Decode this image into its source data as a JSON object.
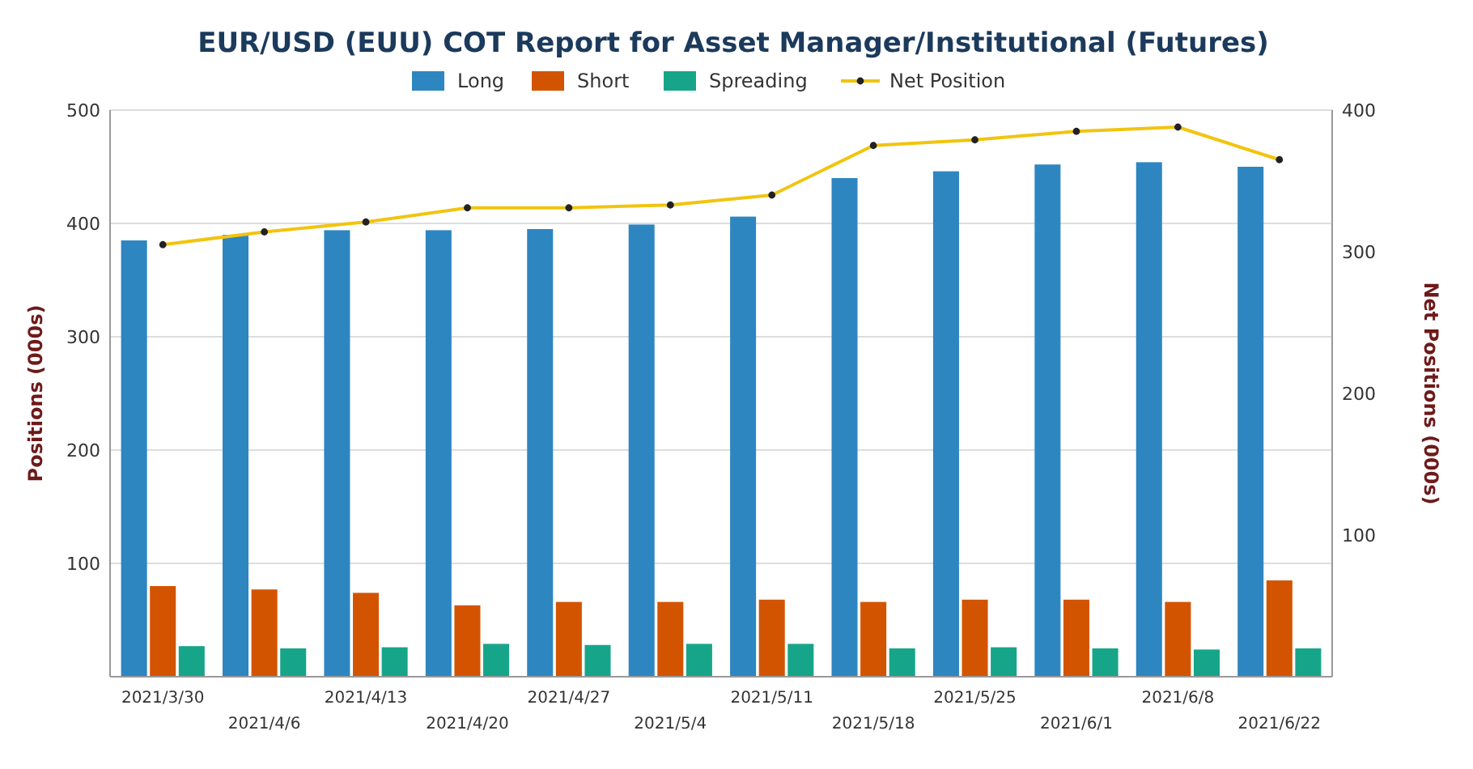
{
  "chart_data": {
    "type": "bar",
    "title": "EUR/USD (EUU) COT Report for Asset Manager/Institutional (Futures)",
    "ylabel": "Positions (000s)",
    "y2label": "Net Positions (000s)",
    "categories": [
      "2021/3/30",
      "2021/4/6",
      "2021/4/13",
      "2021/4/20",
      "2021/4/27",
      "2021/5/4",
      "2021/5/11",
      "2021/5/18",
      "2021/5/25",
      "2021/6/1",
      "2021/6/8",
      "2021/6/22"
    ],
    "series": [
      {
        "name": "Long",
        "color": "#2e86c1",
        "values": [
          385,
          390,
          394,
          394,
          395,
          399,
          406,
          440,
          446,
          452,
          454,
          450
        ]
      },
      {
        "name": "Short",
        "color": "#d35400",
        "values": [
          80,
          77,
          74,
          63,
          66,
          66,
          68,
          66,
          68,
          68,
          66,
          85
        ]
      },
      {
        "name": "Spreading",
        "color": "#17a589",
        "values": [
          27,
          25,
          26,
          29,
          28,
          29,
          29,
          25,
          26,
          25,
          24,
          25
        ]
      },
      {
        "name": "Net Position",
        "type": "line",
        "axis": "y2",
        "color": "#f1c40f",
        "values": [
          305,
          314,
          321,
          331,
          331,
          333,
          340,
          375,
          379,
          385,
          388,
          365
        ]
      }
    ],
    "ylim": [
      0,
      500
    ],
    "yticks": [
      100,
      200,
      300,
      400,
      500
    ],
    "y2lim": [
      0,
      400
    ],
    "y2ticks": [
      100,
      200,
      300,
      400
    ],
    "grid": "y",
    "legend": "top",
    "marker": "circle",
    "line_style": "solid"
  }
}
